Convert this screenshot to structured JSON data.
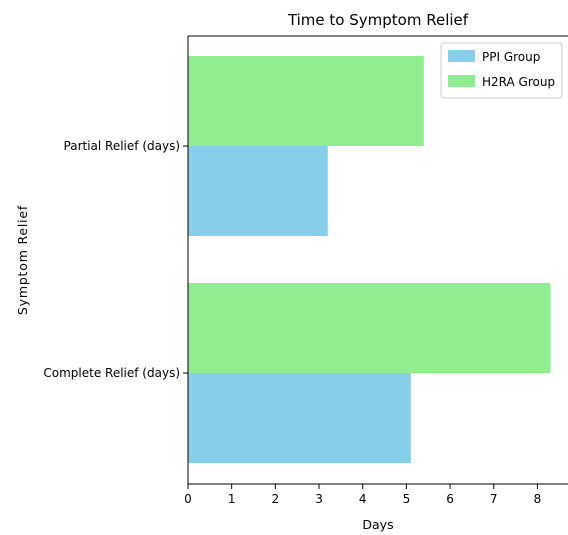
{
  "chart_data": {
    "type": "bar",
    "orientation": "horizontal",
    "title": "Time to Symptom Relief",
    "xlabel": "Days",
    "ylabel": "Symptom Relief",
    "categories": [
      "Partial Relief (days)",
      "Complete Relief (days)"
    ],
    "series": [
      {
        "name": "PPI Group",
        "values": [
          3.2,
          5.1
        ],
        "color": "#87CEEB"
      },
      {
        "name": "H2RA Group",
        "values": [
          5.4,
          8.3
        ],
        "color": "#90EE90"
      }
    ],
    "xlim": [
      0,
      8.7
    ],
    "xticks": [
      0,
      1,
      2,
      3,
      4,
      5,
      6,
      7,
      8
    ],
    "grid": false,
    "legend_position": "top-right"
  }
}
